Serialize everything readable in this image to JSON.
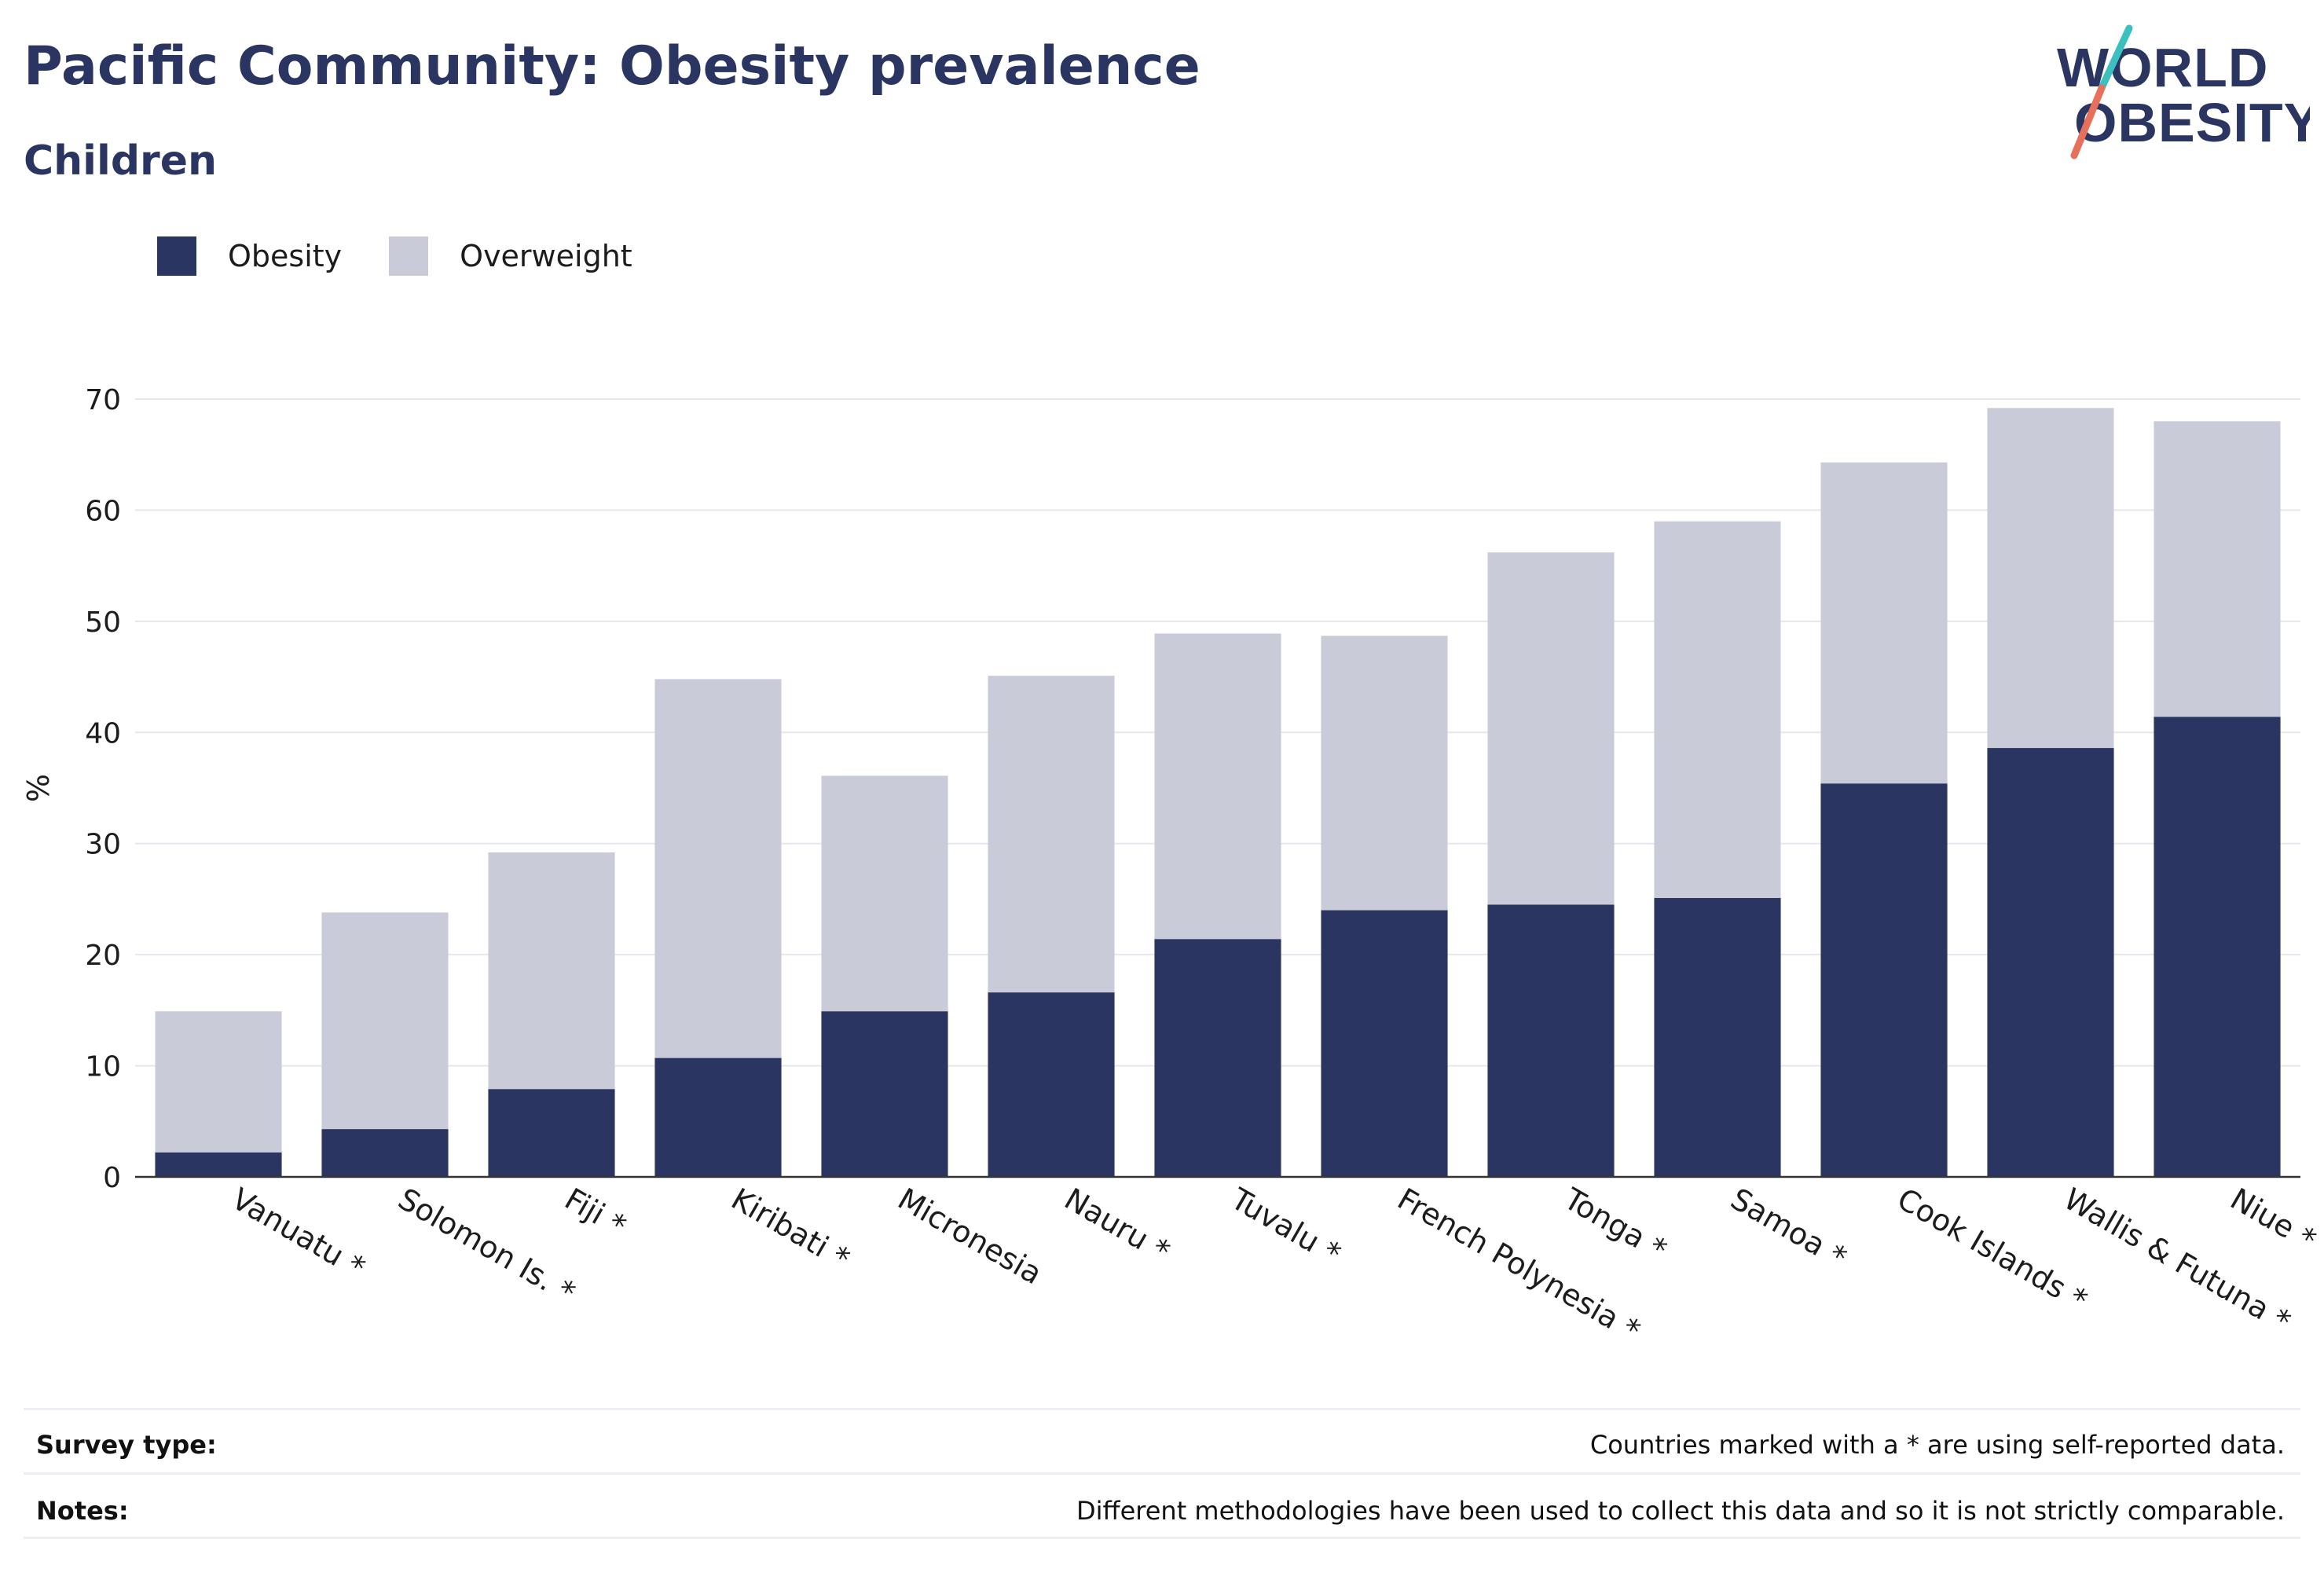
{
  "header": {
    "title": "Pacific Community: Obesity prevalence",
    "subtitle": "Children"
  },
  "logo": {
    "line1": "WORLD",
    "line2": "OBESITY",
    "colors": {
      "text": "#2a3561",
      "slash_top": "#3bbfbf",
      "slash_bottom": "#e8705a"
    }
  },
  "legend": {
    "placement": "top-left",
    "items": [
      {
        "label": "Obesity",
        "color": "#2a3561"
      },
      {
        "label": "Overweight",
        "color": "#c9cbd8"
      }
    ]
  },
  "chart_data": {
    "type": "bar",
    "stacked": true,
    "title": "Pacific Community: Obesity prevalence",
    "subtitle": "Children",
    "xlabel": "",
    "ylabel": "%",
    "ylim": [
      0,
      70
    ],
    "yticks": [
      0,
      10,
      20,
      30,
      40,
      50,
      60,
      70
    ],
    "grid": true,
    "categories": [
      "Vanuatu *",
      "Solomon Is. *",
      "Fiji *",
      "Kiribati *",
      "Micronesia",
      "Nauru *",
      "Tuvalu *",
      "French Polynesia *",
      "Tonga *",
      "Samoa *",
      "Cook Islands *",
      "Wallis & Futuna *",
      "Niue *"
    ],
    "series": [
      {
        "name": "Obesity",
        "color": "#2a3561",
        "values": [
          2.2,
          4.3,
          7.9,
          10.7,
          14.9,
          16.6,
          21.4,
          24.0,
          24.5,
          25.1,
          35.4,
          38.6,
          41.4
        ]
      },
      {
        "name": "Overweight",
        "color": "#c9cbd8",
        "values": [
          12.7,
          19.5,
          21.3,
          34.1,
          21.2,
          28.5,
          27.5,
          24.7,
          31.7,
          33.9,
          28.9,
          30.6,
          26.6
        ]
      }
    ],
    "note": "Overweight segment is stacked above obesity; bar top = obesity + overweight."
  },
  "footer": {
    "survey_type_label": "Survey type:",
    "survey_type_value": "Countries marked with a * are using self-reported data.",
    "notes_label": "Notes:",
    "notes_value": "Different methodologies have been used to collect this data and so it is not strictly comparable."
  }
}
